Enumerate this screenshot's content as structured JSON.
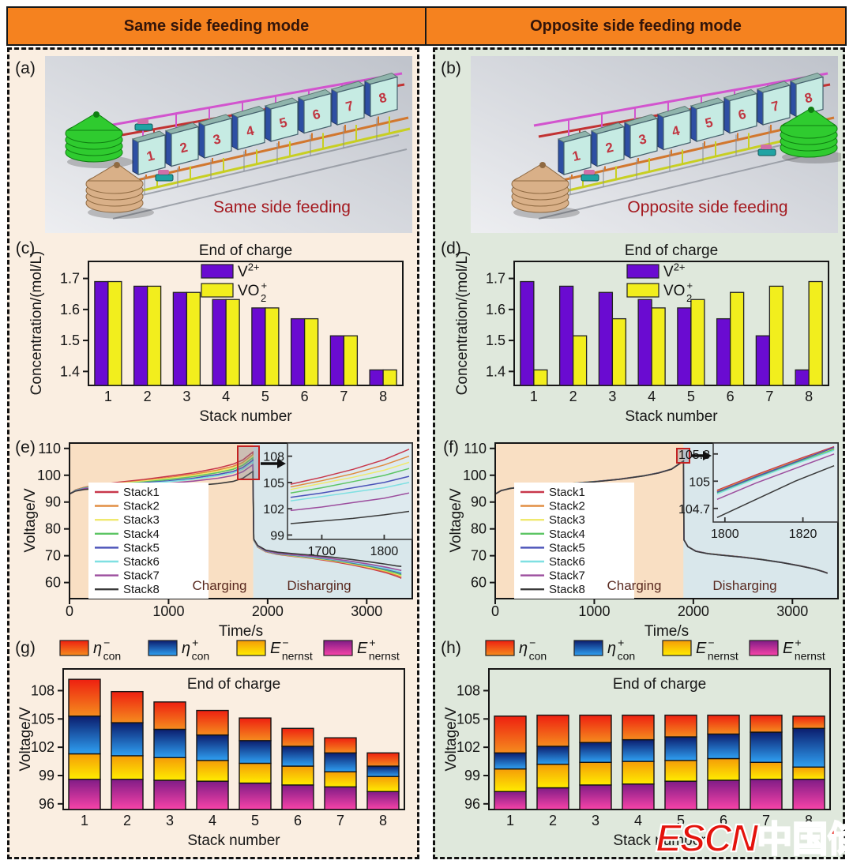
{
  "header": {
    "left": "Same side feeding mode",
    "right": "Opposite side feeding mode"
  },
  "watermark": {
    "latin": "ESCN",
    "cjk": "中国储能网"
  },
  "panels": {
    "a": {
      "label": "(a)",
      "caption": "Same side feeding",
      "stack_numbers": [
        "1",
        "2",
        "3",
        "4",
        "5",
        "6",
        "7",
        "8"
      ],
      "tanks": [
        {
          "color": "green",
          "slot": "left-top"
        },
        {
          "color": "tan",
          "slot": "left-bottom"
        }
      ]
    },
    "b": {
      "label": "(b)",
      "caption": "Opposite side feeding",
      "stack_numbers": [
        "1",
        "2",
        "3",
        "4",
        "5",
        "6",
        "7",
        "8"
      ],
      "tanks": [
        {
          "color": "tan",
          "slot": "left-bottom"
        },
        {
          "color": "green",
          "slot": "right"
        }
      ]
    },
    "c": {
      "label": "(c)"
    },
    "d": {
      "label": "(d)"
    },
    "e": {
      "label": "(e)"
    },
    "f": {
      "label": "(f)"
    },
    "g": {
      "label": "(g)"
    },
    "h": {
      "label": "(h)"
    }
  },
  "chart_data": [
    {
      "id": "c",
      "type": "bar",
      "title": "End of charge",
      "xlabel": "Stack number",
      "ylabel": "Concentration/(mol/L)",
      "categories": [
        "1",
        "2",
        "3",
        "4",
        "5",
        "6",
        "7",
        "8"
      ],
      "yticks": [
        1.4,
        1.5,
        1.6,
        1.7
      ],
      "ylim": [
        1.355,
        1.755
      ],
      "series": [
        {
          "name": "V2+",
          "label_parts": {
            "base": "V",
            "sup": "2+"
          },
          "color": "#6A0BD1",
          "values": [
            1.69,
            1.675,
            1.655,
            1.632,
            1.605,
            1.57,
            1.515,
            1.405
          ]
        },
        {
          "name": "VO2+",
          "label_parts": {
            "base": "VO",
            "sup": "+",
            "sub": "2",
            "stacked": true
          },
          "color": "#F2EE1D",
          "values": [
            1.69,
            1.675,
            1.655,
            1.632,
            1.605,
            1.57,
            1.515,
            1.405
          ]
        }
      ]
    },
    {
      "id": "d",
      "type": "bar",
      "title": "End of charge",
      "xlabel": "Stack number",
      "ylabel": "Concentration/(mol/L)",
      "categories": [
        "1",
        "2",
        "3",
        "4",
        "5",
        "6",
        "7",
        "8"
      ],
      "yticks": [
        1.4,
        1.5,
        1.6,
        1.7
      ],
      "ylim": [
        1.355,
        1.755
      ],
      "series": [
        {
          "name": "V2+",
          "label_parts": {
            "base": "V",
            "sup": "2+"
          },
          "color": "#6A0BD1",
          "values": [
            1.69,
            1.675,
            1.655,
            1.632,
            1.605,
            1.57,
            1.515,
            1.405
          ]
        },
        {
          "name": "VO2+",
          "label_parts": {
            "base": "VO",
            "sup": "+",
            "sub": "2",
            "stacked": true
          },
          "color": "#F2EE1D",
          "values": [
            1.405,
            1.515,
            1.57,
            1.605,
            1.632,
            1.655,
            1.675,
            1.69
          ]
        }
      ]
    },
    {
      "id": "e",
      "type": "line",
      "xlabel": "Time/s",
      "ylabel": "Voltage/V",
      "xlim": [
        0,
        3460
      ],
      "ylim": [
        54,
        112
      ],
      "xticks": [
        0,
        1000,
        2000,
        3000
      ],
      "yticks": [
        60,
        70,
        80,
        90,
        100,
        110
      ],
      "regions": [
        {
          "label": "Charging",
          "end": 1855,
          "color": "#F9DFC3"
        },
        {
          "label": "Disharging",
          "color": "#D9E7EB"
        }
      ],
      "colors": [
        "#C8374B",
        "#E08A3C",
        "#EFE96E",
        "#5CC564",
        "#4A52B8",
        "#7FE0E2",
        "#9C4E9E",
        "#3A3A3A"
      ],
      "charge_x": [
        0,
        60,
        150,
        300,
        500,
        750,
        1000,
        1250,
        1500,
        1650,
        1750,
        1850
      ],
      "discharge_x": [
        1860,
        1900,
        1980,
        2100,
        2250,
        2450,
        2650,
        2850,
        3050,
        3200,
        3300,
        3350
      ],
      "series": [
        {
          "name": "Stack1",
          "charge": [
            93.0,
            94.5,
            95.5,
            96.5,
            97.4,
            98.4,
            99.6,
            100.9,
            102.7,
            104.1,
            105.7,
            108.6
          ],
          "discharge": [
            75.8,
            73.2,
            71.5,
            70.5,
            69.8,
            69.0,
            67.9,
            66.6,
            65.0,
            63.6,
            62.4,
            61.6
          ]
        },
        {
          "name": "Stack2",
          "charge": [
            93.0,
            94.4,
            95.4,
            96.3,
            97.1,
            98.0,
            99.1,
            100.3,
            102.0,
            103.3,
            104.8,
            107.7
          ],
          "discharge": [
            75.8,
            73.3,
            71.6,
            70.6,
            69.9,
            69.1,
            68.1,
            66.9,
            65.3,
            64.0,
            62.8,
            62.2
          ]
        },
        {
          "name": "Stack3",
          "charge": [
            93.0,
            94.4,
            95.3,
            96.2,
            96.9,
            97.8,
            98.8,
            99.9,
            101.5,
            102.7,
            104.3,
            107.1
          ],
          "discharge": [
            75.9,
            73.3,
            71.6,
            70.7,
            70.0,
            69.2,
            68.3,
            67.0,
            65.5,
            64.3,
            63.2,
            62.5
          ]
        },
        {
          "name": "Stack4",
          "charge": [
            93.0,
            94.4,
            95.3,
            96.1,
            96.8,
            97.5,
            98.4,
            99.5,
            101.0,
            102.2,
            103.7,
            106.5
          ],
          "discharge": [
            75.9,
            73.4,
            71.7,
            70.7,
            70.1,
            69.3,
            68.4,
            67.2,
            65.8,
            64.5,
            63.5,
            62.9
          ]
        },
        {
          "name": "Stack5",
          "charge": [
            93.0,
            94.3,
            95.2,
            95.9,
            96.5,
            97.2,
            97.9,
            98.9,
            100.3,
            101.4,
            102.9,
            105.6
          ],
          "discharge": [
            76.0,
            73.5,
            71.7,
            70.8,
            70.2,
            69.5,
            68.6,
            67.4,
            66.1,
            64.9,
            64.0,
            63.4
          ]
        },
        {
          "name": "Stack6",
          "charge": [
            93.0,
            94.3,
            95.1,
            95.8,
            96.3,
            96.9,
            97.6,
            98.5,
            99.8,
            100.9,
            102.3,
            105.0
          ],
          "discharge": [
            76.0,
            73.5,
            71.8,
            70.9,
            70.3,
            69.6,
            68.7,
            67.6,
            66.3,
            65.2,
            64.3,
            63.8
          ]
        },
        {
          "name": "Stack7",
          "charge": [
            93.0,
            94.2,
            95.0,
            95.6,
            96.0,
            96.4,
            97.0,
            97.8,
            98.9,
            99.9,
            101.3,
            103.9
          ],
          "discharge": [
            76.1,
            73.6,
            71.9,
            71.0,
            70.4,
            69.8,
            68.9,
            67.9,
            66.7,
            65.7,
            64.9,
            64.5
          ]
        },
        {
          "name": "Stack8",
          "charge": [
            93.0,
            94.1,
            94.7,
            95.1,
            95.2,
            95.4,
            95.6,
            96.1,
            96.9,
            97.7,
            98.9,
            101.4
          ],
          "discharge": [
            76.2,
            73.8,
            72.1,
            71.3,
            70.8,
            70.2,
            69.5,
            68.6,
            67.6,
            66.8,
            66.2,
            66.0
          ]
        }
      ],
      "inset": {
        "xlim": [
          1645,
          1845
        ],
        "ylim": [
          98.5,
          109.5
        ],
        "xticks": [
          1700,
          1800
        ],
        "yticks": [
          99,
          102,
          105,
          108
        ],
        "x": [
          1650,
          1700,
          1750,
          1800,
          1840
        ],
        "series": [
          [
            104.8,
            105.6,
            106.5,
            107.6,
            108.8
          ],
          [
            104.5,
            105.2,
            106.0,
            107.0,
            108.0
          ],
          [
            104.2,
            104.9,
            105.6,
            106.4,
            107.3
          ],
          [
            103.8,
            104.4,
            105.1,
            105.8,
            106.6
          ],
          [
            103.3,
            103.8,
            104.4,
            105.0,
            105.7
          ],
          [
            102.9,
            103.4,
            103.9,
            104.4,
            105.0
          ],
          [
            101.8,
            102.2,
            102.7,
            103.2,
            103.8
          ],
          [
            100.3,
            100.6,
            100.9,
            101.3,
            101.7
          ]
        ]
      }
    },
    {
      "id": "f",
      "type": "line",
      "xlabel": "Time/s",
      "ylabel": "Voltage/V",
      "xlim": [
        0,
        3460
      ],
      "ylim": [
        54,
        112
      ],
      "xticks": [
        0,
        1000,
        2000,
        3000
      ],
      "yticks": [
        60,
        70,
        80,
        90,
        100,
        110
      ],
      "regions": [
        {
          "label": "Charging",
          "end": 1900,
          "color": "#F9DFC3"
        },
        {
          "label": "Disharging",
          "color": "#D9E7EB"
        }
      ],
      "colors": [
        "#C8374B",
        "#E08A3C",
        "#EFE96E",
        "#5CC564",
        "#4A52B8",
        "#7FE0E2",
        "#9C4E9E",
        "#3A3A3A"
      ],
      "charge_x": [
        0,
        60,
        150,
        300,
        500,
        750,
        1000,
        1250,
        1500,
        1650,
        1780,
        1900
      ],
      "discharge_x": [
        1905,
        1945,
        2025,
        2145,
        2290,
        2490,
        2690,
        2890,
        3080,
        3220,
        3310,
        3355
      ],
      "charge_base": [
        93.0,
        94.3,
        95.1,
        95.8,
        96.3,
        96.9,
        97.6,
        98.5,
        99.8,
        100.9,
        102.3,
        105.3
      ],
      "discharge_base": [
        75.9,
        73.4,
        71.7,
        70.8,
        70.2,
        69.5,
        68.6,
        67.5,
        66.2,
        65.1,
        64.1,
        63.5
      ],
      "series": [
        {
          "name": "Stack1",
          "offset": 0.05
        },
        {
          "name": "Stack2",
          "offset": 0.04
        },
        {
          "name": "Stack3",
          "offset": 0.03
        },
        {
          "name": "Stack4",
          "offset": 0.02
        },
        {
          "name": "Stack5",
          "offset": 0.01
        },
        {
          "name": "Stack6",
          "offset": 0.0
        },
        {
          "name": "Stack7",
          "offset": -0.02
        },
        {
          "name": "Stack8",
          "offset": -0.05
        }
      ],
      "inset": {
        "xlim": [
          1797,
          1829
        ],
        "ylim": [
          104.55,
          105.42
        ],
        "xticks": [
          1800,
          1820
        ],
        "yticks": [
          104.7,
          105.0,
          105.3
        ],
        "x": [
          1798,
          1808,
          1818,
          1828
        ],
        "series": [
          [
            104.9,
            105.07,
            105.23,
            105.38
          ],
          [
            104.89,
            105.06,
            105.22,
            105.37
          ],
          [
            104.88,
            105.05,
            105.21,
            105.36
          ],
          [
            104.87,
            105.04,
            105.2,
            105.35
          ],
          [
            104.88,
            105.05,
            105.21,
            105.37
          ],
          [
            104.86,
            105.03,
            105.19,
            105.34
          ],
          [
            104.8,
            104.98,
            105.14,
            105.3
          ],
          [
            104.6,
            104.8,
            105.0,
            105.17
          ]
        ]
      }
    },
    {
      "id": "g",
      "type": "stacked-bar",
      "title": "End of charge",
      "xlabel": "Stack number",
      "ylabel": "Voltage/V",
      "categories": [
        "1",
        "2",
        "3",
        "4",
        "5",
        "6",
        "7",
        "8"
      ],
      "yticks": [
        96,
        99,
        102,
        105,
        108
      ],
      "ylim": [
        95.4,
        110.3
      ],
      "bar_base": 95.4,
      "series": [
        {
          "key": "e_pos",
          "label_parts": {
            "base": "E",
            "italic": true,
            "sup": "+",
            "sub": "nernst",
            "stacked": true
          },
          "grad": [
            "#801C86",
            "#F843A8"
          ],
          "tops": [
            98.6,
            98.6,
            98.5,
            98.4,
            98.2,
            98.0,
            97.8,
            97.3
          ]
        },
        {
          "key": "e_neg",
          "label_parts": {
            "base": "E",
            "italic": true,
            "sup": "−",
            "sub": "nernst",
            "stacked": true
          },
          "grad": [
            "#F59C08",
            "#FFEC00"
          ],
          "tops": [
            101.3,
            101.1,
            100.9,
            100.6,
            100.3,
            100.0,
            99.4,
            98.9
          ]
        },
        {
          "key": "eta_pos",
          "label_parts": {
            "base": "η",
            "italic": true,
            "sup": "+",
            "sub": "con",
            "stacked": true
          },
          "grad": [
            "#0B1D6E",
            "#2FA0F2"
          ],
          "tops": [
            105.3,
            104.6,
            103.9,
            103.3,
            102.7,
            102.1,
            101.4,
            100.0
          ]
        },
        {
          "key": "eta_neg",
          "label_parts": {
            "base": "η",
            "italic": true,
            "sup": "−",
            "sub": "con",
            "stacked": true
          },
          "grad": [
            "#EE2010",
            "#F58C1E"
          ],
          "tops": [
            109.2,
            107.9,
            106.8,
            105.9,
            105.1,
            104.0,
            103.0,
            101.4
          ]
        }
      ],
      "legend_order": [
        "eta_neg",
        "eta_pos",
        "e_neg",
        "e_pos"
      ]
    },
    {
      "id": "h",
      "type": "stacked-bar",
      "title": "End of charge",
      "xlabel": "Stack number",
      "ylabel": "Voltage/V",
      "categories": [
        "1",
        "2",
        "3",
        "4",
        "5",
        "6",
        "7",
        "8"
      ],
      "yticks": [
        96,
        99,
        102,
        105,
        108
      ],
      "ylim": [
        95.4,
        110.3
      ],
      "bar_base": 95.4,
      "series": [
        {
          "key": "e_pos",
          "label_parts": {
            "base": "E",
            "italic": true,
            "sup": "+",
            "sub": "nernst",
            "stacked": true
          },
          "grad": [
            "#801C86",
            "#F843A8"
          ],
          "tops": [
            97.3,
            97.7,
            98.0,
            98.1,
            98.4,
            98.5,
            98.6,
            98.6
          ]
        },
        {
          "key": "e_neg",
          "label_parts": {
            "base": "E",
            "italic": true,
            "sup": "−",
            "sub": "nernst",
            "stacked": true
          },
          "grad": [
            "#F59C08",
            "#FFEC00"
          ],
          "tops": [
            99.7,
            100.2,
            100.4,
            100.5,
            100.6,
            100.8,
            100.4,
            99.9
          ]
        },
        {
          "key": "eta_pos",
          "label_parts": {
            "base": "η",
            "italic": true,
            "sup": "+",
            "sub": "con",
            "stacked": true
          },
          "grad": [
            "#0B1D6E",
            "#2FA0F2"
          ],
          "tops": [
            101.4,
            102.1,
            102.5,
            102.8,
            103.1,
            103.4,
            103.6,
            104.0
          ]
        },
        {
          "key": "eta_neg",
          "label_parts": {
            "base": "η",
            "italic": true,
            "sup": "−",
            "sub": "con",
            "stacked": true
          },
          "grad": [
            "#EE2010",
            "#F58C1E"
          ],
          "tops": [
            105.3,
            105.4,
            105.4,
            105.4,
            105.4,
            105.4,
            105.4,
            105.3
          ]
        }
      ],
      "legend_order": [
        "eta_neg",
        "eta_pos",
        "e_neg",
        "e_pos"
      ]
    }
  ]
}
